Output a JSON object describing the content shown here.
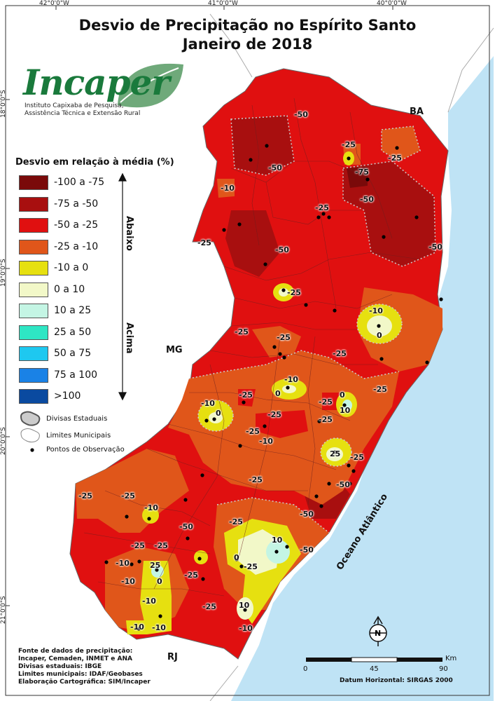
{
  "title": {
    "line1": "Desvio de Precipitação no Espírito Santo",
    "line2": "Janeiro de 2018"
  },
  "graticule": {
    "top": [
      "42°0'0\"W",
      "41°0'0\"W",
      "40°0'0\"W"
    ],
    "left": [
      "18°0'0\"S",
      "19°0'0\"S",
      "20°0'0\"S",
      "21°0'0\"S"
    ]
  },
  "logo": {
    "name": "Incaper",
    "subtitle_line1": "Instituto Capixaba de Pesquisa,",
    "subtitle_line2": "Assistência Técnica e Extensão Rural"
  },
  "legend": {
    "title": "Desvio em relação à média (%)",
    "classes": [
      {
        "label": "-100 a -75",
        "color": "#7a0a0a"
      },
      {
        "label": "-75 a -50",
        "color": "#a80f0f"
      },
      {
        "label": "-50 a -25",
        "color": "#e01010"
      },
      {
        "label": "-25 a -10",
        "color": "#e0561a"
      },
      {
        "label": "-10 a 0",
        "color": "#e6e010"
      },
      {
        "label": "0 a 10",
        "color": "#f2f8c8"
      },
      {
        "label": "10 a 25",
        "color": "#c4f5e4"
      },
      {
        "label": "25 a 50",
        "color": "#2ee6c4"
      },
      {
        "label": "50 a 75",
        "color": "#1ec8f0"
      },
      {
        "label": "75 a 100",
        "color": "#1a82e6"
      },
      {
        "label": ">100",
        "color": "#0a4aa0"
      }
    ],
    "below_label": "Abaixo",
    "above_label": "Acima",
    "symbols": [
      {
        "label": "Divisas Estaduais",
        "icon": "state-border-icon"
      },
      {
        "label": "Limites Municipais",
        "icon": "municipal-border-icon"
      },
      {
        "label": "Pontos de Observação",
        "icon": "observation-point-icon"
      }
    ]
  },
  "labels": {
    "states": {
      "ba": "BA",
      "mg": "MG",
      "rj": "RJ"
    },
    "ocean": "Oceano Atlântico"
  },
  "map_labels": [
    "-50",
    "-50",
    "-25",
    "-25",
    "-75",
    "-50",
    "-10",
    "-25",
    "-50",
    "-25",
    "-50",
    "-25",
    "-10",
    "0",
    "-25",
    "-25",
    "-25",
    "-25",
    "-10",
    "0",
    "-25",
    "-10",
    "0",
    "-25",
    "0",
    "10",
    "-25",
    "-25",
    "-25",
    "-10",
    "25",
    "-25",
    "-25",
    "-50",
    "-25",
    "-25",
    "-10",
    "-50",
    "-25",
    "-25",
    "-25",
    "-50",
    "10",
    "0",
    "-25",
    "-50",
    "-10",
    "25",
    "-25",
    "-10",
    "0",
    "10",
    "-10",
    "-25",
    "-10",
    "-10",
    "-10"
  ],
  "scale_bar": {
    "ticks": [
      "0",
      "45",
      "90"
    ],
    "unit": "Km"
  },
  "datum": "Datum Horizontal: SIRGAS 2000",
  "north_symbol": "N",
  "credits": {
    "text": "Fonte de dados de precipitação:\nIncaper, Cemaden, INMET e ANA\nDivisas estaduais: IBGE\nLimites municipais: IDAF/Geobases\nElaboração Cartográfica: SIM/Incaper"
  },
  "colors": {
    "ocean": "#bfe3f5",
    "land": "#ffffff",
    "border": "#888888"
  }
}
